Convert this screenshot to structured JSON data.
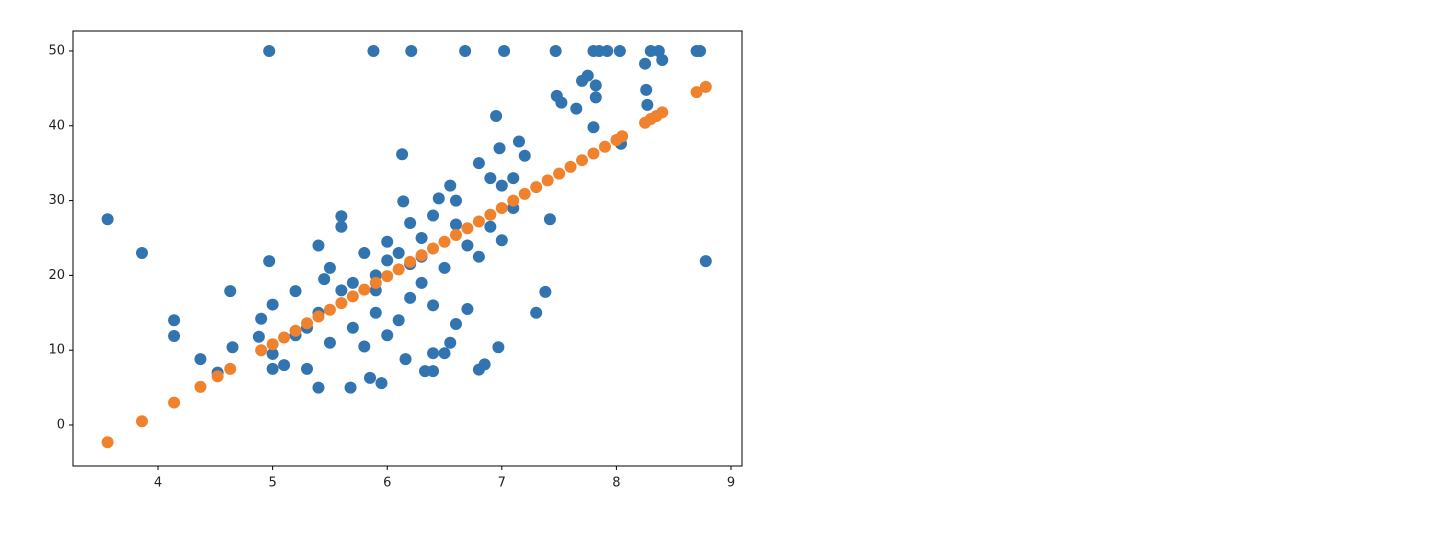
{
  "chart_data": {
    "type": "scatter",
    "series": [
      {
        "color": "#3274b0",
        "x": [
          3.56,
          3.86,
          4.14,
          4.14,
          4.37,
          4.52,
          4.63,
          4.65,
          4.97,
          5.88,
          6.21,
          6.68,
          7.02,
          7.47,
          7.8,
          7.85,
          7.92,
          8.03,
          8.3,
          8.37,
          8.7,
          8.73,
          8.78,
          4.97,
          4.88,
          4.9,
          5.0,
          5.0,
          5.1,
          5.2,
          5.3,
          5.4,
          5.4,
          5.6,
          5.6,
          5.68,
          5.85,
          5.95,
          6.13,
          6.14,
          6.16,
          6.33,
          6.4,
          6.4,
          6.5,
          6.55,
          6.8,
          6.85,
          6.97,
          6.95,
          6.98,
          7.15,
          7.3,
          7.38,
          7.42,
          7.48,
          7.52,
          7.65,
          7.7,
          7.75,
          7.8,
          7.82,
          7.82,
          8.04,
          8.25,
          8.26,
          8.27,
          8.4,
          7.2,
          7.1,
          7.0,
          6.9,
          6.8,
          6.6,
          6.55,
          6.4,
          6.3,
          6.2,
          6.0,
          5.9,
          5.8,
          5.7,
          5.6,
          5.5,
          5.4,
          5.3,
          5.9,
          6.0,
          6.1,
          6.2,
          6.3,
          6.5,
          6.7,
          6.4,
          6.6,
          6.7,
          5.8,
          5.7,
          5.5,
          6.0,
          6.1,
          6.2,
          5.9,
          6.3,
          6.8,
          7.0,
          7.1,
          6.9,
          5.2,
          5.0,
          5.45,
          6.45,
          6.6
        ],
        "values": [
          27.5,
          23,
          14,
          11.9,
          8.8,
          7,
          17.9,
          10.4,
          50,
          50,
          50,
          50,
          50,
          50,
          50,
          50,
          50,
          50,
          50,
          50,
          50,
          50,
          21.9,
          21.9,
          11.8,
          14.2,
          16.1,
          7.5,
          8.0,
          17.9,
          7.5,
          5.0,
          24.0,
          27.9,
          26.5,
          5.0,
          6.3,
          5.6,
          36.2,
          29.9,
          8.8,
          7.2,
          7.2,
          9.6,
          9.6,
          11.0,
          7.4,
          8.1,
          10.4,
          41.3,
          37,
          37.9,
          15,
          17.8,
          27.5,
          44,
          43.1,
          42.3,
          46,
          46.7,
          39.8,
          45.4,
          43.8,
          37.6,
          48.3,
          44.8,
          42.8,
          48.8,
          36,
          33,
          32,
          33,
          35,
          30,
          32,
          28,
          25,
          27,
          22,
          20,
          23,
          19,
          18,
          21,
          15,
          13,
          15,
          12,
          14,
          17,
          19,
          21,
          24,
          16,
          13.5,
          15.5,
          10.5,
          13,
          11,
          24.5,
          23,
          21.5,
          18,
          22.5,
          22.5,
          24.7,
          29,
          26.5,
          12,
          9.5,
          19.5,
          30.3,
          26.8
        ]
      },
      {
        "color": "#f0822e",
        "x": [
          3.56,
          3.86,
          4.14,
          4.37,
          4.52,
          4.63,
          4.9,
          5.0,
          5.1,
          5.2,
          5.3,
          5.4,
          5.5,
          5.6,
          5.7,
          5.8,
          5.9,
          6.0,
          6.1,
          6.2,
          6.3,
          6.4,
          6.5,
          6.6,
          6.7,
          6.8,
          6.9,
          7.0,
          7.1,
          7.2,
          7.3,
          7.4,
          7.5,
          7.6,
          7.7,
          7.8,
          7.9,
          8.0,
          8.05,
          8.25,
          8.3,
          8.35,
          8.4,
          8.7,
          8.78
        ],
        "values": [
          -2.3,
          0.5,
          3.0,
          5.1,
          6.5,
          7.5,
          10.0,
          10.8,
          11.7,
          12.6,
          13.6,
          14.5,
          15.4,
          16.3,
          17.2,
          18.1,
          19.0,
          19.9,
          20.8,
          21.8,
          22.7,
          23.6,
          24.5,
          25.4,
          26.3,
          27.2,
          28.1,
          29.0,
          30.0,
          30.9,
          31.8,
          32.7,
          33.6,
          34.5,
          35.4,
          36.3,
          37.2,
          38.1,
          38.6,
          40.4,
          40.9,
          41.3,
          41.8,
          44.5,
          45.2
        ]
      }
    ],
    "xlim": [
      3.258,
      9.096
    ],
    "ylim": [
      -5.48,
      52.67
    ],
    "xticks": [
      4,
      5,
      6,
      7,
      8,
      9
    ],
    "yticks": [
      0,
      10,
      20,
      30,
      40,
      50
    ]
  }
}
